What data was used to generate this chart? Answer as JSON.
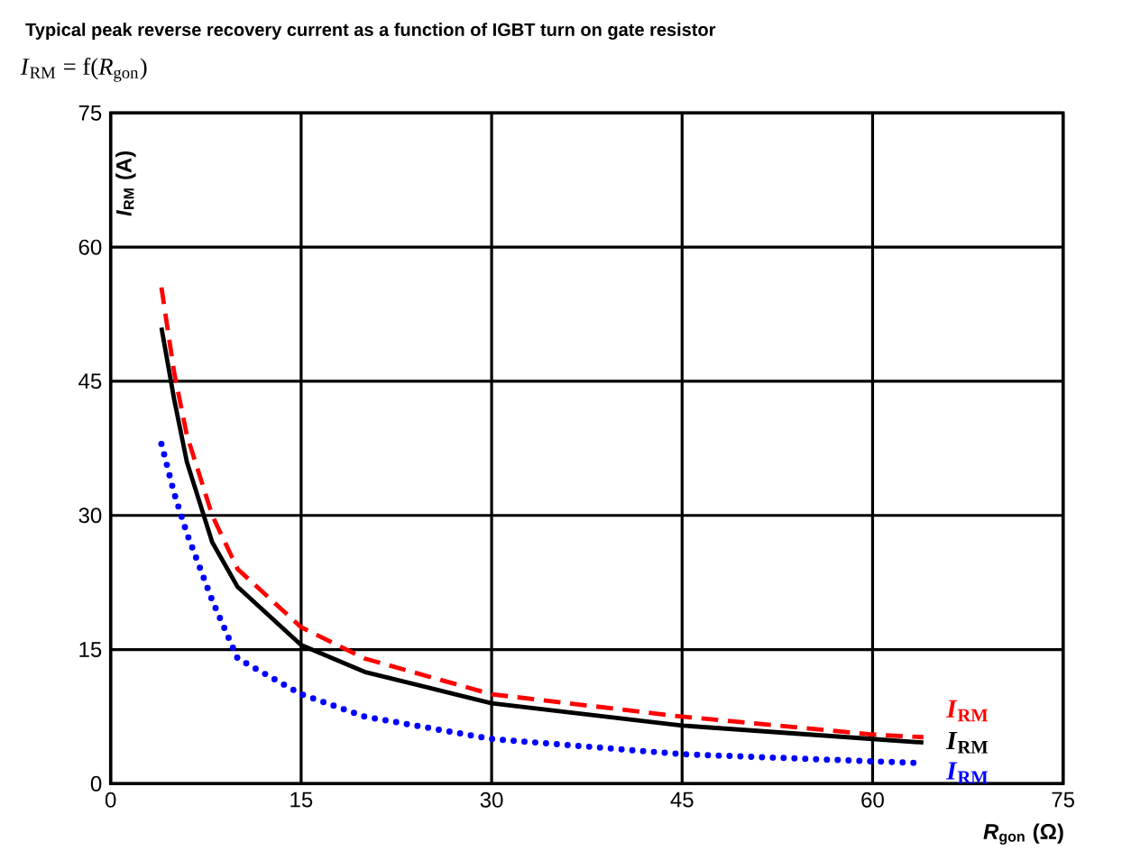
{
  "chart_data": {
    "type": "line",
    "title": "Typical peak reverse recovery current as a function of IGBT turn on gate resistor",
    "subtitle": "*I*$_{RM}$ = f(*R*$_{gon}$)",
    "xlabel": "*R*$_{gon}$ (Ω)",
    "ylabel": "*I*$_{RM}$ (A)",
    "xlim": [
      0,
      75
    ],
    "ylim": [
      0,
      75
    ],
    "xticks": [
      0,
      15,
      30,
      45,
      60,
      75
    ],
    "yticks": [
      0,
      15,
      30,
      45,
      60,
      75
    ],
    "grid": true,
    "series": [
      {
        "name": "*I*$_{RM}$",
        "color": "#ff0000",
        "line_style": "dashed",
        "x": [
          4,
          5,
          6,
          8,
          10,
          15,
          20,
          30,
          45,
          60,
          64
        ],
        "values": [
          55.5,
          46,
          39,
          30,
          24,
          17.5,
          14,
          10,
          7.5,
          5.5,
          5.2
        ]
      },
      {
        "name": "*I*$_{RM}$",
        "color": "#000000",
        "line_style": "solid",
        "x": [
          4,
          5,
          6,
          8,
          10,
          15,
          20,
          30,
          45,
          60,
          64
        ],
        "values": [
          51,
          43,
          36,
          27,
          22,
          15.5,
          12.5,
          9,
          6.5,
          5,
          4.6
        ]
      },
      {
        "name": "*I*$_{RM}$",
        "color": "#0000ff",
        "line_style": "dotted",
        "x": [
          4,
          5,
          6,
          8,
          10,
          15,
          20,
          30,
          45,
          60,
          64
        ],
        "values": [
          38,
          32.5,
          28,
          20.5,
          14,
          10,
          7.5,
          5,
          3.3,
          2.5,
          2.3
        ]
      }
    ]
  }
}
